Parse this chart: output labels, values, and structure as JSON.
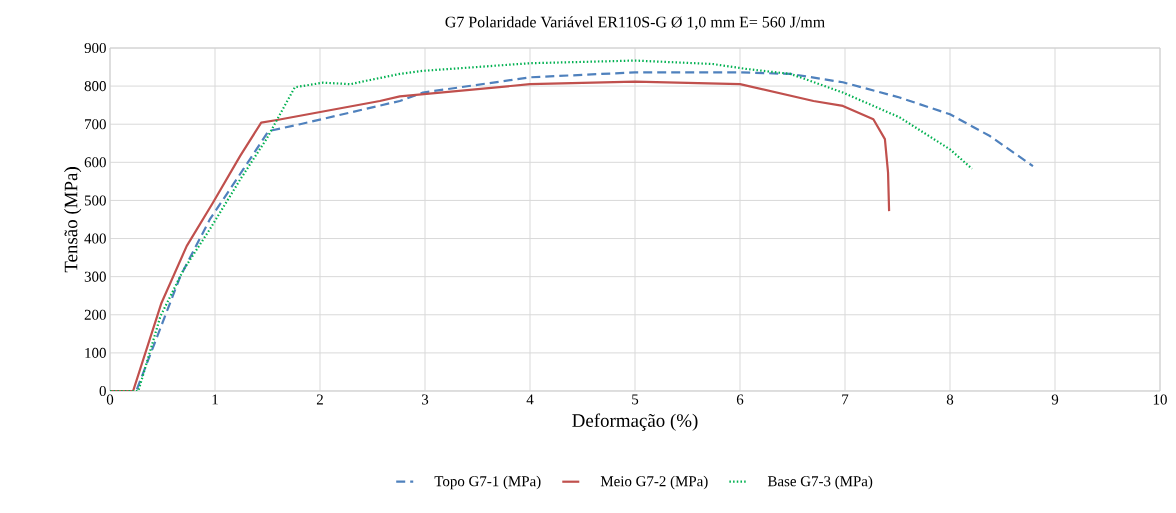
{
  "chart_data": {
    "type": "line",
    "title": "G7 Polaridade Variável ER110S-G Ø 1,0 mm E= 560 J/mm",
    "xlabel": "Deformação (%)",
    "ylabel": "Tensão (MPa)",
    "xlim": [
      0,
      10
    ],
    "ylim": [
      0,
      900
    ],
    "xticks": [
      0,
      1,
      2,
      3,
      4,
      5,
      6,
      7,
      8,
      9,
      10
    ],
    "yticks": [
      0,
      100,
      200,
      300,
      400,
      500,
      600,
      700,
      800,
      900
    ],
    "grid": true,
    "legend": "bottom",
    "marker": "none",
    "series": [
      {
        "name": "Topo G7-1 (MPa)",
        "color": "#4f81bd",
        "line_style": "dashed",
        "x": [
          0,
          0.25,
          0.67,
          0.95,
          1.27,
          1.51,
          1.81,
          2.76,
          2.98,
          4.0,
          5.0,
          6.0,
          6.48,
          6.98,
          7.52,
          8.0,
          8.38,
          8.79
        ],
        "values": [
          0,
          0,
          301,
          450,
          582,
          682,
          700,
          761,
          783,
          823,
          836,
          836,
          832,
          810,
          770,
          726,
          669,
          590
        ]
      },
      {
        "name": "Meio G7-2 (MPa)",
        "color": "#c0504d",
        "line_style": "solid",
        "x": [
          0,
          0.22,
          0.49,
          0.73,
          0.98,
          1.24,
          1.44,
          1.59,
          2.57,
          2.76,
          4.0,
          5.0,
          6.0,
          6.7,
          6.98,
          7.27,
          7.38,
          7.41,
          7.42
        ],
        "values": [
          0,
          0,
          231,
          380,
          494,
          617,
          704,
          711,
          761,
          773,
          805,
          812,
          805,
          761,
          748,
          713,
          661,
          573,
          472
        ]
      },
      {
        "name": "Base G7-3 (MPa)",
        "color": "#00b050",
        "line_style": "dotted",
        "x": [
          0,
          0.27,
          0.48,
          0.7,
          0.95,
          1.24,
          1.49,
          1.76,
          2.03,
          2.29,
          2.44,
          2.76,
          2.98,
          4.0,
          5.0,
          5.74,
          6.06,
          6.48,
          6.98,
          7.52,
          8.0,
          8.21
        ],
        "values": [
          0,
          0,
          196,
          318,
          424,
          555,
          661,
          797,
          809,
          805,
          814,
          832,
          840,
          860,
          867,
          858,
          845,
          832,
          783,
          718,
          634,
          583
        ]
      }
    ]
  }
}
